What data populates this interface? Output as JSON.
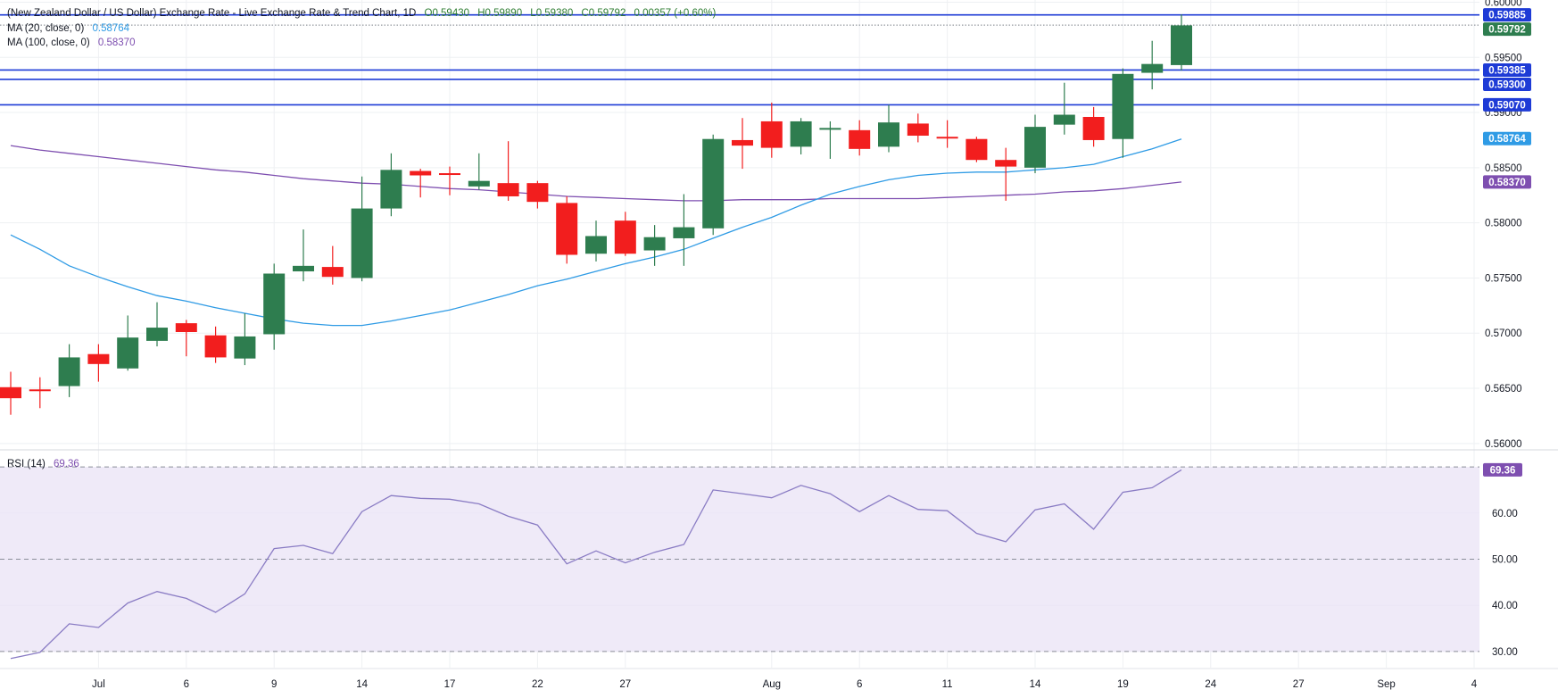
{
  "header": {
    "title": "(New Zealand Dollar / US Dollar) Exchange Rate - Live Exchange Rate & Trend Chart, 1D",
    "open": "O0.59430",
    "high": "H0.59890",
    "low": "L0.59380",
    "close": "C0.59792",
    "change": "0.00357 (+0.60%)",
    "ma20_label": "MA (20, close, 0)",
    "ma20_value": "0.58764",
    "ma100_label": "MA (100, close, 0)",
    "ma100_value": "0.58370",
    "rsi_label": "RSI (14)",
    "rsi_value": "69.36"
  },
  "colors": {
    "up": "#2e7d4f",
    "down": "#f21e1e",
    "ma20": "#2f9be5",
    "ma100": "#7e4fb0",
    "hline": "#1e3bd6",
    "rsi_line": "#8a7cc4",
    "rsi_fill": "#efeaf8",
    "grid": "#eef0f3",
    "text": "#131722"
  },
  "chart_data": [
    {
      "type": "candlestick",
      "price_axis": {
        "ticks": [
          "0.56000",
          "0.56500",
          "0.57000",
          "0.57500",
          "0.58000",
          "0.58500",
          "0.59000",
          "0.59500",
          "0.60000"
        ],
        "range": [
          0.5595,
          0.6002
        ]
      },
      "time_axis": {
        "labels": [
          {
            "text": "Jul",
            "bar": 3
          },
          {
            "text": "6",
            "bar": 6
          },
          {
            "text": "9",
            "bar": 9
          },
          {
            "text": "14",
            "bar": 12
          },
          {
            "text": "17",
            "bar": 15
          },
          {
            "text": "22",
            "bar": 18
          },
          {
            "text": "27",
            "bar": 21
          },
          {
            "text": "Aug",
            "bar": 26
          },
          {
            "text": "6",
            "bar": 29
          },
          {
            "text": "11",
            "bar": 32
          },
          {
            "text": "14",
            "bar": 35
          },
          {
            "text": "19",
            "bar": 38
          },
          {
            "text": "24",
            "bar": 41
          },
          {
            "text": "27",
            "bar": 44
          },
          {
            "text": "Sep",
            "bar": 47
          },
          {
            "text": "4",
            "bar": 50
          }
        ]
      },
      "candles": [
        {
          "o": 0.5651,
          "h": 0.5665,
          "l": 0.5626,
          "c": 0.5641
        },
        {
          "o": 0.5649,
          "h": 0.566,
          "l": 0.5632,
          "c": 0.5648
        },
        {
          "o": 0.5652,
          "h": 0.569,
          "l": 0.5642,
          "c": 0.5678
        },
        {
          "o": 0.5681,
          "h": 0.569,
          "l": 0.5656,
          "c": 0.5672
        },
        {
          "o": 0.5668,
          "h": 0.5716,
          "l": 0.5666,
          "c": 0.5696
        },
        {
          "o": 0.5693,
          "h": 0.5728,
          "l": 0.5688,
          "c": 0.5705
        },
        {
          "o": 0.5709,
          "h": 0.5712,
          "l": 0.5679,
          "c": 0.5701
        },
        {
          "o": 0.5698,
          "h": 0.5706,
          "l": 0.5673,
          "c": 0.5678
        },
        {
          "o": 0.5677,
          "h": 0.5718,
          "l": 0.5671,
          "c": 0.5697
        },
        {
          "o": 0.5699,
          "h": 0.5763,
          "l": 0.5685,
          "c": 0.5754
        },
        {
          "o": 0.5756,
          "h": 0.5794,
          "l": 0.5747,
          "c": 0.5761
        },
        {
          "o": 0.576,
          "h": 0.5779,
          "l": 0.5744,
          "c": 0.5751
        },
        {
          "o": 0.575,
          "h": 0.5842,
          "l": 0.5747,
          "c": 0.5813
        },
        {
          "o": 0.5813,
          "h": 0.5863,
          "l": 0.5806,
          "c": 0.5848
        },
        {
          "o": 0.5847,
          "h": 0.5849,
          "l": 0.5823,
          "c": 0.5843
        },
        {
          "o": 0.5845,
          "h": 0.5851,
          "l": 0.5825,
          "c": 0.5844
        },
        {
          "o": 0.5833,
          "h": 0.5863,
          "l": 0.583,
          "c": 0.5838
        },
        {
          "o": 0.5836,
          "h": 0.5874,
          "l": 0.582,
          "c": 0.5824
        },
        {
          "o": 0.5836,
          "h": 0.5838,
          "l": 0.5813,
          "c": 0.5819
        },
        {
          "o": 0.5818,
          "h": 0.5824,
          "l": 0.5763,
          "c": 0.5771
        },
        {
          "o": 0.5772,
          "h": 0.5802,
          "l": 0.5765,
          "c": 0.5788
        },
        {
          "o": 0.5802,
          "h": 0.581,
          "l": 0.577,
          "c": 0.5772
        },
        {
          "o": 0.5775,
          "h": 0.5798,
          "l": 0.5761,
          "c": 0.5787
        },
        {
          "o": 0.5786,
          "h": 0.5826,
          "l": 0.5761,
          "c": 0.5796
        },
        {
          "o": 0.5795,
          "h": 0.588,
          "l": 0.5789,
          "c": 0.5876
        },
        {
          "o": 0.5875,
          "h": 0.5895,
          "l": 0.5849,
          "c": 0.587
        },
        {
          "o": 0.5892,
          "h": 0.5909,
          "l": 0.5859,
          "c": 0.5868
        },
        {
          "o": 0.5869,
          "h": 0.5895,
          "l": 0.5862,
          "c": 0.5892
        },
        {
          "o": 0.5885,
          "h": 0.5892,
          "l": 0.5858,
          "c": 0.5886
        },
        {
          "o": 0.5884,
          "h": 0.5893,
          "l": 0.5861,
          "c": 0.5867
        },
        {
          "o": 0.5869,
          "h": 0.5907,
          "l": 0.5864,
          "c": 0.5891
        },
        {
          "o": 0.589,
          "h": 0.5899,
          "l": 0.5873,
          "c": 0.5879
        },
        {
          "o": 0.5878,
          "h": 0.5893,
          "l": 0.5868,
          "c": 0.5877
        },
        {
          "o": 0.5876,
          "h": 0.5878,
          "l": 0.5855,
          "c": 0.5857
        },
        {
          "o": 0.5857,
          "h": 0.5868,
          "l": 0.582,
          "c": 0.5851
        },
        {
          "o": 0.585,
          "h": 0.5898,
          "l": 0.5845,
          "c": 0.5887
        },
        {
          "o": 0.5889,
          "h": 0.5927,
          "l": 0.588,
          "c": 0.5898
        },
        {
          "o": 0.5896,
          "h": 0.5905,
          "l": 0.5869,
          "c": 0.5875
        },
        {
          "o": 0.5876,
          "h": 0.594,
          "l": 0.5859,
          "c": 0.5935
        },
        {
          "o": 0.5936,
          "h": 0.5965,
          "l": 0.5921,
          "c": 0.5944
        },
        {
          "o": 0.5943,
          "h": 0.5989,
          "l": 0.5938,
          "c": 0.5979
        }
      ],
      "ma20": [
        0.5789,
        0.5776,
        0.5761,
        0.5751,
        0.5742,
        0.5734,
        0.5729,
        0.5723,
        0.5718,
        0.5713,
        0.5709,
        0.5707,
        0.5707,
        0.5711,
        0.5716,
        0.5721,
        0.5728,
        0.5735,
        0.5743,
        0.5749,
        0.5756,
        0.5763,
        0.5769,
        0.5776,
        0.5786,
        0.5796,
        0.5805,
        0.5816,
        0.5826,
        0.5833,
        0.5839,
        0.5843,
        0.5845,
        0.5846,
        0.5846,
        0.5848,
        0.585,
        0.5853,
        0.586,
        0.5867,
        0.5876
      ],
      "ma100": [
        0.587,
        0.5866,
        0.5863,
        0.586,
        0.5857,
        0.5854,
        0.5851,
        0.5848,
        0.5846,
        0.5843,
        0.584,
        0.5838,
        0.5836,
        0.5835,
        0.5833,
        0.5831,
        0.583,
        0.5828,
        0.5826,
        0.5824,
        0.5823,
        0.5822,
        0.5821,
        0.582,
        0.582,
        0.5821,
        0.5821,
        0.5821,
        0.5822,
        0.5822,
        0.5822,
        0.5822,
        0.5823,
        0.5824,
        0.5825,
        0.5826,
        0.5828,
        0.5829,
        0.5831,
        0.5834,
        0.5837
      ],
      "horizontal_levels": [
        0.59885,
        0.59385,
        0.593,
        0.5907
      ],
      "price_tags": [
        {
          "label": "0.59885",
          "value": 0.59885,
          "kind": "level"
        },
        {
          "label": "0.59792",
          "value": 0.59792,
          "kind": "last"
        },
        {
          "label": "0.59385",
          "value": 0.59385,
          "kind": "level"
        },
        {
          "label": "0.59300",
          "value": 0.593,
          "kind": "level"
        },
        {
          "label": "0.59070",
          "value": 0.5907,
          "kind": "level"
        },
        {
          "label": "0.58764",
          "value": 0.58764,
          "kind": "ma20"
        },
        {
          "label": "0.58370",
          "value": 0.5837,
          "kind": "ma100"
        }
      ],
      "last_price": 0.59792
    },
    {
      "type": "line",
      "rsi": [
        28.5,
        29.8,
        36.0,
        35.2,
        40.5,
        43.0,
        41.5,
        38.5,
        42.5,
        52.3,
        53.0,
        51.2,
        60.3,
        63.8,
        63.2,
        63.0,
        62.0,
        59.3,
        57.4,
        49.0,
        51.8,
        49.2,
        51.5,
        53.2,
        65.0,
        64.2,
        63.3,
        66.0,
        64.2,
        60.3,
        63.8,
        60.8,
        60.5,
        55.6,
        53.8,
        60.7,
        62.0,
        56.5,
        64.5,
        65.5,
        69.36
      ],
      "ticks": [
        "30.00",
        "40.00",
        "50.00",
        "60.00"
      ],
      "range": [
        26.5,
        73.5
      ],
      "guides": [
        30,
        50,
        70
      ],
      "last_label": "69.36"
    }
  ]
}
